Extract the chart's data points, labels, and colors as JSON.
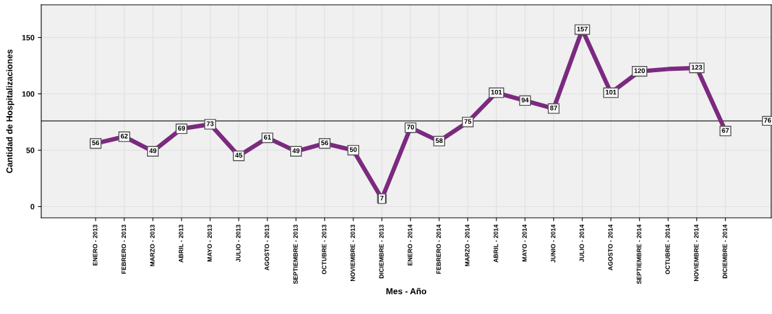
{
  "chart_data": {
    "type": "line",
    "xlabel": "Mes - Año",
    "ylabel": "Cantidad de Hospitalizaciones",
    "categories": [
      "ENERO - 2013",
      "FEBRERO - 2013",
      "MARZO - 2013",
      "ABRIL - 2013",
      "MAYO - 2013",
      "JULIO - 2013",
      "AGOSTO - 2013",
      "SEPTIEMBRE - 2013",
      "OCTUBRE - 2013",
      "NOVIEMBRE - 2013",
      "DICIEMBRE - 2013",
      "ENERO - 2014",
      "FEBRERO - 2014",
      "MARZO - 2014",
      "ABRIL - 2014",
      "MAYO - 2014",
      "JUNIO - 2014",
      "JULIO - 2014",
      "AGOSTO - 2014",
      "SEPTIEMBRE - 2014",
      "OCTUBRE - 2014",
      "NOVIEMBRE - 2014",
      "DICIEMBRE - 2014"
    ],
    "series": [
      {
        "color": "#7b2a7f",
        "values": [
          56,
          62,
          49,
          69,
          73,
          45,
          61,
          49,
          56,
          50,
          7,
          70,
          58,
          75,
          101,
          94,
          87,
          157,
          101,
          120,
          122,
          123,
          67
        ],
        "value_labels": [
          "56",
          "62",
          "49",
          "69",
          "73",
          "45",
          "61",
          "49",
          "56",
          "50",
          "7",
          "70",
          "58",
          "75",
          "101",
          "94",
          "87",
          "157",
          "101",
          "120",
          null,
          "123",
          "67"
        ]
      }
    ],
    "ylim": [
      -10,
      179
    ],
    "yticks": [
      0,
      50,
      100,
      150
    ],
    "ref_lines": [
      {
        "axis": "y",
        "value": 76,
        "label": "76",
        "color": "#404040",
        "line_style": "solid"
      }
    ],
    "grid": true,
    "marker": "square",
    "line_style": "solid"
  }
}
